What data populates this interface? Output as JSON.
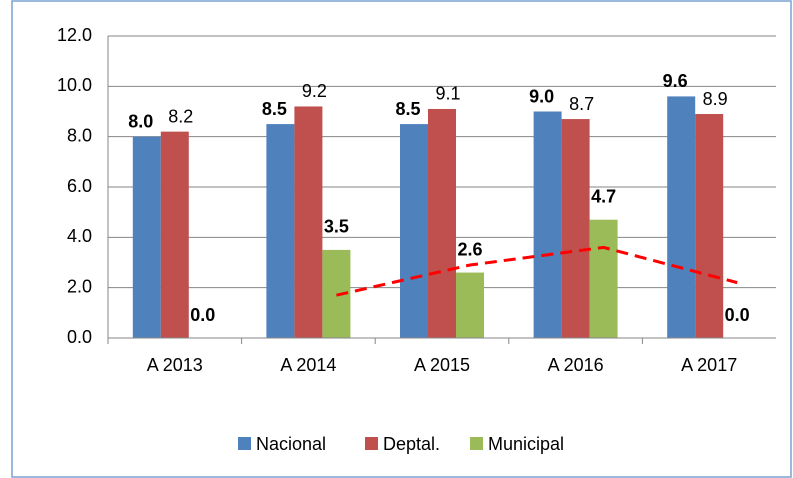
{
  "chart_data": {
    "type": "bar",
    "categories": [
      "A 2013",
      "A 2014",
      "A 2015",
      "A 2016",
      "A 2017"
    ],
    "series": [
      {
        "name": "Nacional",
        "color": "#4f81bd",
        "values": [
          8.0,
          8.5,
          8.5,
          9.0,
          9.6
        ],
        "value_labels": [
          "8.0",
          "8.5",
          "8.5",
          "9.0",
          "9.6"
        ]
      },
      {
        "name": "Deptal.",
        "color": "#c0504d",
        "values": [
          8.2,
          9.2,
          9.1,
          8.7,
          8.9
        ],
        "value_labels": [
          "8.2",
          "9.2",
          "9.1",
          "8.7",
          "8.9"
        ]
      },
      {
        "name": "Municipal",
        "color": "#9bbb59",
        "values": [
          0.0,
          3.5,
          2.6,
          4.7,
          0.0
        ],
        "value_labels": [
          "0.0",
          "3.5",
          "2.6",
          "4.7",
          "0.0"
        ]
      }
    ],
    "trend": {
      "color": "#ff0000",
      "values": [
        null,
        1.7,
        2.9,
        3.6,
        2.2
      ]
    },
    "ylim": [
      0,
      12
    ],
    "yticks": [
      {
        "value": 0,
        "label": "0.0"
      },
      {
        "value": 2,
        "label": "2.0"
      },
      {
        "value": 4,
        "label": "4.0"
      },
      {
        "value": 6,
        "label": "6.0"
      },
      {
        "value": 8,
        "label": "8.0"
      },
      {
        "value": 10,
        "label": "10.0"
      },
      {
        "value": 12,
        "label": "12.0"
      }
    ],
    "grid": true,
    "legend": "bottom"
  }
}
